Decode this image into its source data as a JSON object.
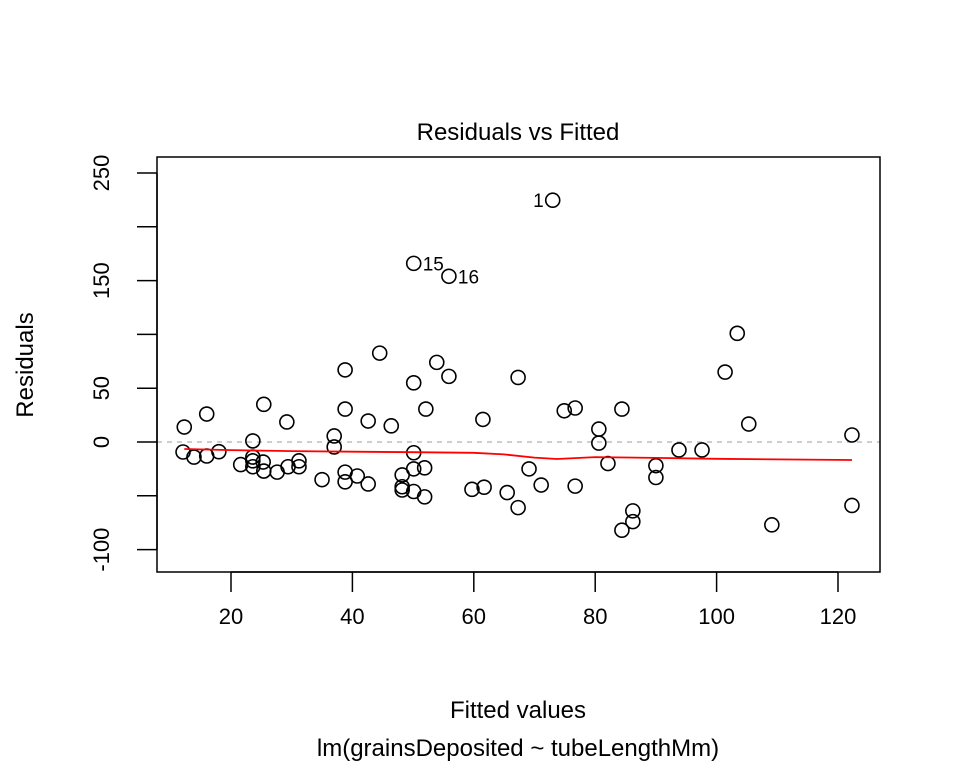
{
  "chart_data": {
    "type": "scatter",
    "title": "Residuals vs Fitted",
    "xlabel": "Fitted values",
    "subtitle": "lm(grainsDeposited ~ tubeLengthMm)",
    "ylabel": "Residuals",
    "xlim": [
      7.5,
      127
    ],
    "ylim": [
      -120,
      260
    ],
    "x_ticks": [
      20,
      40,
      60,
      80,
      100,
      120
    ],
    "x_tick_labels": [
      "20",
      "40",
      "60",
      "80",
      "100",
      "120"
    ],
    "y_ticks": [
      -100,
      -50,
      0,
      50,
      100,
      150,
      200,
      250
    ],
    "y_tick_labels": [
      "-100",
      "",
      "0",
      "50",
      "",
      "150",
      "",
      "250"
    ],
    "reference_line": {
      "y": 0,
      "style": "dashed",
      "color": "#bebebe"
    },
    "smooth_line": {
      "color": "#ff0000",
      "x": [
        12.3,
        20,
        30,
        40,
        50,
        60,
        65,
        70,
        73.7,
        80,
        90,
        100,
        110,
        122.3
      ],
      "y": [
        -6.5,
        -7.5,
        -8.5,
        -9,
        -9.5,
        -10,
        -11.5,
        -14.5,
        -15.8,
        -14,
        -14.8,
        -15.6,
        -16.2,
        -16.7
      ]
    },
    "point_style": {
      "shape": "open-circle",
      "color": "#000000"
    },
    "points": [
      {
        "x": 12.3,
        "y": 13.9
      },
      {
        "x": 16.0,
        "y": 26
      },
      {
        "x": 25.4,
        "y": 35
      },
      {
        "x": 29.2,
        "y": 18.6
      },
      {
        "x": 23.6,
        "y": 1
      },
      {
        "x": 12.1,
        "y": -9.3
      },
      {
        "x": 13.9,
        "y": -14
      },
      {
        "x": 16.0,
        "y": -13
      },
      {
        "x": 18.0,
        "y": -9
      },
      {
        "x": 21.6,
        "y": -21
      },
      {
        "x": 23.6,
        "y": -14
      },
      {
        "x": 23.6,
        "y": -17.5
      },
      {
        "x": 23.6,
        "y": -23
      },
      {
        "x": 25.3,
        "y": -18.6
      },
      {
        "x": 25.4,
        "y": -27
      },
      {
        "x": 27.6,
        "y": -28
      },
      {
        "x": 29.4,
        "y": -23
      },
      {
        "x": 31.2,
        "y": -17.5
      },
      {
        "x": 31.2,
        "y": -23
      },
      {
        "x": 35.0,
        "y": -35
      },
      {
        "x": 37.0,
        "y": -4.6
      },
      {
        "x": 37.0,
        "y": 5.6
      },
      {
        "x": 38.8,
        "y": -28
      },
      {
        "x": 38.8,
        "y": -37
      },
      {
        "x": 40.8,
        "y": -31.6
      },
      {
        "x": 42.6,
        "y": -39
      },
      {
        "x": 44.5,
        "y": 82.6
      },
      {
        "x": 38.8,
        "y": 67
      },
      {
        "x": 53.9,
        "y": 74
      },
      {
        "x": 55.9,
        "y": 61
      },
      {
        "x": 50.1,
        "y": 55
      },
      {
        "x": 38.8,
        "y": 30.6
      },
      {
        "x": 52.1,
        "y": 30.6
      },
      {
        "x": 42.6,
        "y": 19.5
      },
      {
        "x": 46.4,
        "y": 15
      },
      {
        "x": 50.1,
        "y": -10
      },
      {
        "x": 50.1,
        "y": -25
      },
      {
        "x": 51.9,
        "y": -24
      },
      {
        "x": 48.2,
        "y": -30.6
      },
      {
        "x": 48.2,
        "y": -41.6
      },
      {
        "x": 48.2,
        "y": -44.6
      },
      {
        "x": 50.1,
        "y": -46
      },
      {
        "x": 51.9,
        "y": -51
      },
      {
        "x": 59.7,
        "y": -44
      },
      {
        "x": 61.7,
        "y": -42
      },
      {
        "x": 65.5,
        "y": -47
      },
      {
        "x": 67.3,
        "y": -61
      },
      {
        "x": 69.1,
        "y": -25
      },
      {
        "x": 71.1,
        "y": -40
      },
      {
        "x": 76.7,
        "y": -41
      },
      {
        "x": 82.1,
        "y": -20
      },
      {
        "x": 67.3,
        "y": 60
      },
      {
        "x": 61.5,
        "y": 21
      },
      {
        "x": 74.9,
        "y": 29
      },
      {
        "x": 76.7,
        "y": 31.6
      },
      {
        "x": 80.6,
        "y": 12
      },
      {
        "x": 80.6,
        "y": -1
      },
      {
        "x": 103.4,
        "y": 101
      },
      {
        "x": 101.4,
        "y": 65
      },
      {
        "x": 84.4,
        "y": 30.6
      },
      {
        "x": 105.3,
        "y": 16.7
      },
      {
        "x": 90.0,
        "y": -22
      },
      {
        "x": 90.0,
        "y": -33
      },
      {
        "x": 93.8,
        "y": -7.4
      },
      {
        "x": 97.6,
        "y": -7.4
      },
      {
        "x": 86.2,
        "y": -64
      },
      {
        "x": 86.2,
        "y": -74
      },
      {
        "x": 84.4,
        "y": -82
      },
      {
        "x": 122.3,
        "y": 6.5
      },
      {
        "x": 122.3,
        "y": -59
      },
      {
        "x": 109.1,
        "y": -77
      },
      {
        "x": 73.0,
        "y": 224.7,
        "label": "1",
        "label_side": "left"
      },
      {
        "x": 50.1,
        "y": 166,
        "label": "15",
        "label_side": "right"
      },
      {
        "x": 55.9,
        "y": 154,
        "label": "16",
        "label_side": "right"
      }
    ]
  }
}
